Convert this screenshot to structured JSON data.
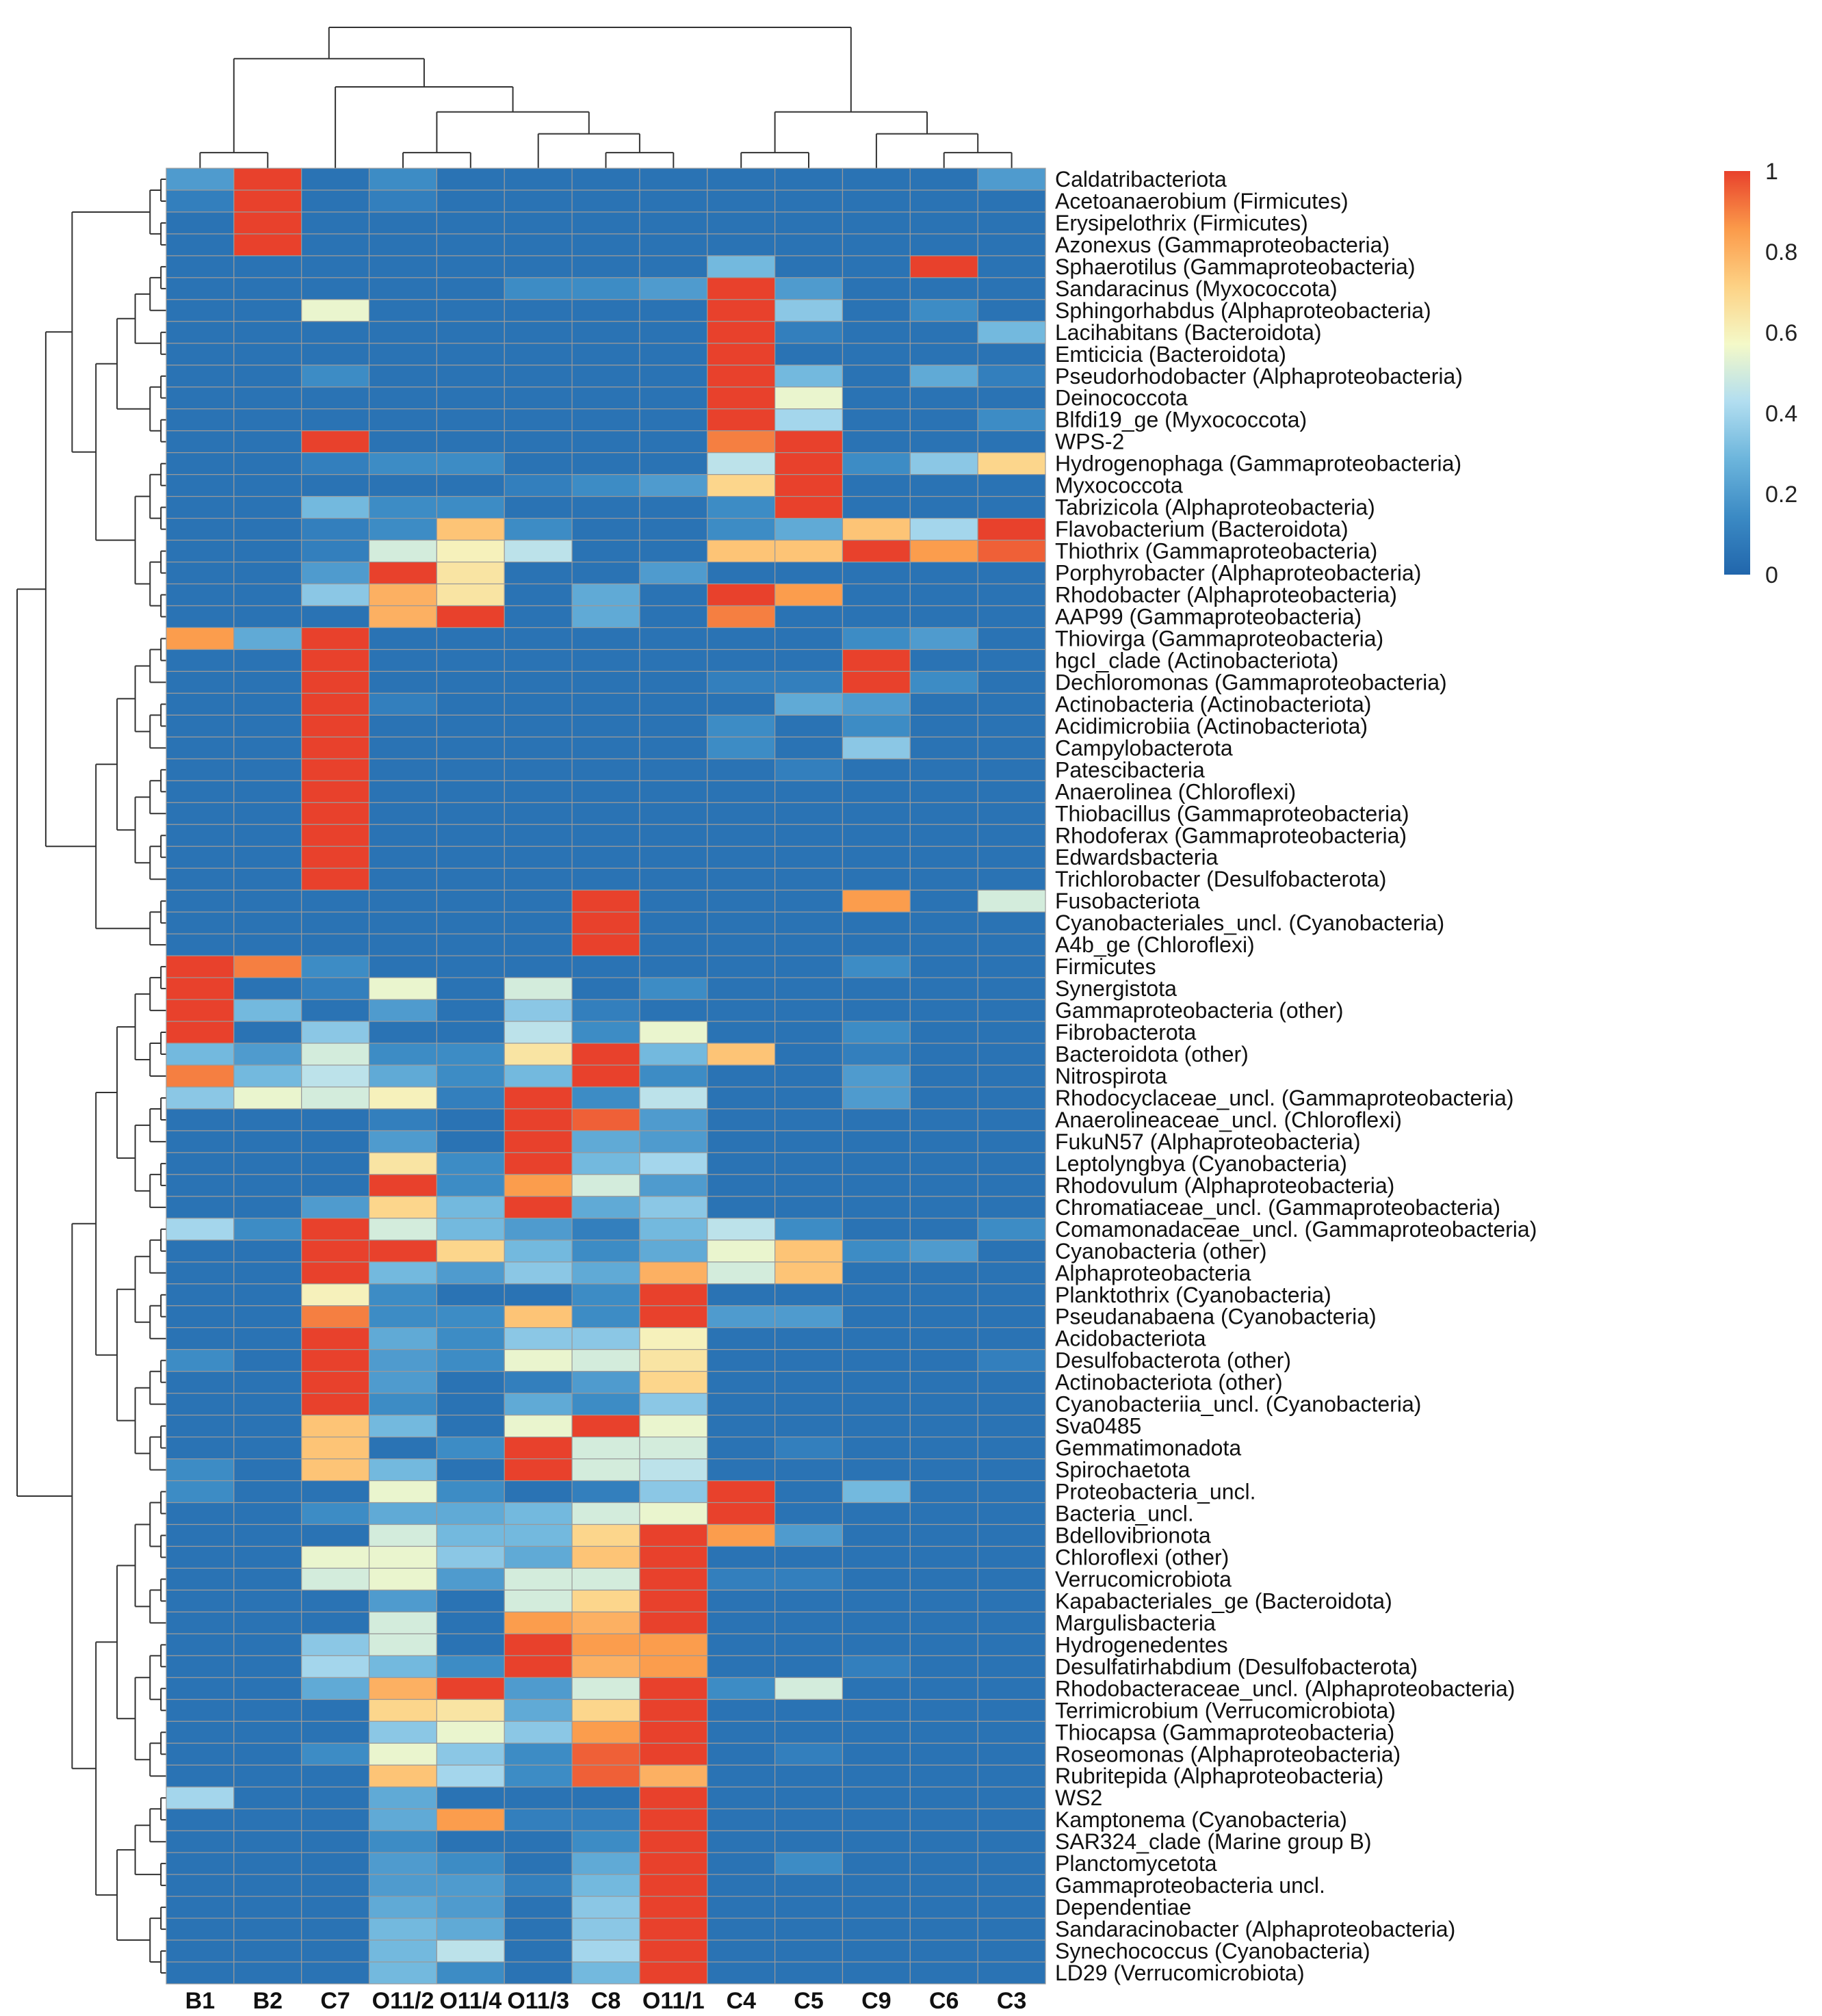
{
  "chart_data": {
    "type": "heatmap",
    "title": "",
    "columns": [
      "B1",
      "B2",
      "C7",
      "O11/2",
      "O11/4",
      "O11/3",
      "C8",
      "O11/1",
      "C4",
      "C5",
      "C9",
      "C6",
      "C3"
    ],
    "rows": [
      "Caldatribacteriota",
      "Acetoanaerobium (Firmicutes)",
      "Erysipelothrix (Firmicutes)",
      "Azonexus (Gammaproteobacteria)",
      "Sphaerotilus (Gammaproteobacteria)",
      "Sandaracinus (Myxococcota)",
      "Sphingorhabdus (Alphaproteobacteria)",
      "Lacihabitans (Bacteroidota)",
      "Emticicia (Bacteroidota)",
      "Pseudorhodobacter (Alphaproteobacteria)",
      "Deinococcota",
      "Blfdi19_ge (Myxococcota)",
      "WPS-2",
      "Hydrogenophaga (Gammaproteobacteria)",
      "Myxococcota",
      "Tabrizicola (Alphaproteobacteria)",
      "Flavobacterium (Bacteroidota)",
      "Thiothrix (Gammaproteobacteria)",
      "Porphyrobacter (Alphaproteobacteria)",
      "Rhodobacter (Alphaproteobacteria)",
      "AAP99 (Gammaproteobacteria)",
      "Thiovirga (Gammaproteobacteria)",
      "hgcI_clade (Actinobacteriota)",
      "Dechloromonas (Gammaproteobacteria)",
      "Actinobacteria (Actinobacteriota)",
      "Acidimicrobiia (Actinobacteriota)",
      "Campylobacterota",
      "Patescibacteria",
      "Anaerolinea (Chloroflexi)",
      "Thiobacillus (Gammaproteobacteria)",
      "Rhodoferax (Gammaproteobacteria)",
      "Edwardsbacteria",
      "Trichlorobacter (Desulfobacterota)",
      "Fusobacteriota",
      "Cyanobacteriales_uncl. (Cyanobacteria)",
      "A4b_ge (Chloroflexi)",
      "Firmicutes",
      "Synergistota",
      "Gammaproteobacteria (other)",
      "Fibrobacterota",
      "Bacteroidota (other)",
      "Nitrospirota",
      "Rhodocyclaceae_uncl. (Gammaproteobacteria)",
      "Anaerolineaceae_uncl. (Chloroflexi)",
      "FukuN57 (Alphaproteobacteria)",
      "Leptolyngbya (Cyanobacteria)",
      "Rhodovulum (Alphaproteobacteria)",
      "Chromatiaceae_uncl. (Gammaproteobacteria)",
      "Comamonadaceae_uncl. (Gammaproteobacteria)",
      "Cyanobacteria (other)",
      "Alphaproteobacteria",
      "Planktothrix (Cyanobacteria)",
      "Pseudanabaena (Cyanobacteria)",
      "Acidobacteriota",
      "Desulfobacterota (other)",
      "Actinobacteriota (other)",
      "Cyanobacteriia_uncl. (Cyanobacteria)",
      "Sva0485",
      "Gemmatimonadota",
      "Spirochaetota",
      "Proteobacteria_uncl.",
      "Bacteria_uncl.",
      "Bdellovibrionota",
      "Chloroflexi (other)",
      "Verrucomicrobiota",
      "Kapabacteriales_ge (Bacteroidota)",
      "Margulisbacteria",
      "Hydrogenedentes",
      "Desulfatirhabdium (Desulfobacterota)",
      "Rhodobacteraceae_uncl. (Alphaproteobacteria)",
      "Terrimicrobium (Verrucomicrobiota)",
      "Thiocapsa (Gammaproteobacteria)",
      "Roseomonas (Alphaproteobacteria)",
      "Rubritepida (Alphaproteobacteria)",
      "WS2",
      "Kamptonema (Cyanobacteria)",
      "SAR324_clade (Marine group B)",
      "Planctomycetota",
      "Gammaproteobacteria uncl.",
      "Dependentiae",
      "Sandaracinobacter (Alphaproteobacteria)",
      "Synechococcus (Cyanobacteria)",
      "LD29 (Verrucomicrobiota)"
    ],
    "values": [
      [
        0.2,
        1,
        0.05,
        0.15,
        0.05,
        0.05,
        0.05,
        0.05,
        0.05,
        0.05,
        0.05,
        0.05,
        0.2
      ],
      [
        0.1,
        1,
        0.05,
        0.1,
        0.05,
        0.05,
        0.05,
        0.05,
        0.05,
        0.05,
        0.05,
        0.05,
        0.05
      ],
      [
        0.05,
        1,
        0.05,
        0.05,
        0.05,
        0.05,
        0.05,
        0.05,
        0.05,
        0.05,
        0.05,
        0.05,
        0.05
      ],
      [
        0.05,
        1,
        0.05,
        0.05,
        0.05,
        0.05,
        0.05,
        0.05,
        0.05,
        0.05,
        0.05,
        0.05,
        0.05
      ],
      [
        0.05,
        0.05,
        0.05,
        0.05,
        0.05,
        0.05,
        0.05,
        0.05,
        0.3,
        0.05,
        0.05,
        1,
        0.05
      ],
      [
        0.05,
        0.05,
        0.05,
        0.05,
        0.05,
        0.15,
        0.15,
        0.2,
        1,
        0.2,
        0.05,
        0.05,
        0.05
      ],
      [
        0.05,
        0.05,
        0.55,
        0.05,
        0.05,
        0.05,
        0.05,
        0.05,
        1,
        0.35,
        0.05,
        0.15,
        0.05
      ],
      [
        0.05,
        0.05,
        0.05,
        0.05,
        0.05,
        0.05,
        0.05,
        0.05,
        1,
        0.1,
        0.05,
        0.05,
        0.3
      ],
      [
        0.05,
        0.05,
        0.05,
        0.05,
        0.05,
        0.05,
        0.05,
        0.05,
        1,
        0.05,
        0.05,
        0.05,
        0.05
      ],
      [
        0.05,
        0.05,
        0.15,
        0.05,
        0.05,
        0.05,
        0.05,
        0.05,
        1,
        0.3,
        0.05,
        0.25,
        0.1
      ],
      [
        0.05,
        0.05,
        0.05,
        0.05,
        0.05,
        0.05,
        0.05,
        0.05,
        1,
        0.55,
        0.05,
        0.05,
        0.05
      ],
      [
        0.05,
        0.05,
        0.05,
        0.05,
        0.05,
        0.05,
        0.05,
        0.05,
        1,
        0.4,
        0.05,
        0.05,
        0.15
      ],
      [
        0.05,
        0.05,
        1,
        0.05,
        0.05,
        0.05,
        0.05,
        0.05,
        0.9,
        1,
        0.05,
        0.05,
        0.05
      ],
      [
        0.05,
        0.05,
        0.1,
        0.15,
        0.15,
        0.05,
        0.05,
        0.05,
        0.45,
        1,
        0.15,
        0.35,
        0.7
      ],
      [
        0.05,
        0.05,
        0.05,
        0.05,
        0.05,
        0.1,
        0.15,
        0.2,
        0.7,
        1,
        0.05,
        0.05,
        0.05
      ],
      [
        0.05,
        0.05,
        0.3,
        0.15,
        0.15,
        0.05,
        0.05,
        0.05,
        0.15,
        1,
        0.05,
        0.05,
        0.05
      ],
      [
        0.05,
        0.05,
        0.1,
        0.15,
        0.75,
        0.15,
        0.05,
        0.05,
        0.15,
        0.25,
        0.75,
        0.4,
        1
      ],
      [
        0.05,
        0.05,
        0.1,
        0.5,
        0.6,
        0.45,
        0.05,
        0.05,
        0.75,
        0.75,
        1,
        0.85,
        0.95
      ],
      [
        0.05,
        0.05,
        0.2,
        1,
        0.65,
        0.05,
        0.05,
        0.2,
        0.05,
        0.05,
        0.05,
        0.05,
        0.05
      ],
      [
        0.05,
        0.05,
        0.35,
        0.8,
        0.65,
        0.05,
        0.25,
        0.05,
        1,
        0.85,
        0.05,
        0.05,
        0.05
      ],
      [
        0.05,
        0.05,
        0.05,
        0.8,
        1,
        0.05,
        0.25,
        0.05,
        0.9,
        0.05,
        0.05,
        0.05,
        0.05
      ],
      [
        0.85,
        0.25,
        1,
        0.05,
        0.05,
        0.05,
        0.05,
        0.05,
        0.05,
        0.05,
        0.15,
        0.2,
        0.05
      ],
      [
        0.05,
        0.05,
        1,
        0.05,
        0.05,
        0.05,
        0.05,
        0.05,
        0.05,
        0.05,
        1,
        0.05,
        0.05
      ],
      [
        0.05,
        0.05,
        1,
        0.05,
        0.05,
        0.05,
        0.05,
        0.05,
        0.1,
        0.1,
        1,
        0.15,
        0.05
      ],
      [
        0.05,
        0.05,
        1,
        0.1,
        0.05,
        0.05,
        0.05,
        0.05,
        0.05,
        0.25,
        0.2,
        0.05,
        0.05
      ],
      [
        0.05,
        0.05,
        1,
        0.05,
        0.05,
        0.05,
        0.05,
        0.05,
        0.15,
        0.05,
        0.15,
        0.05,
        0.05
      ],
      [
        0.05,
        0.05,
        1,
        0.05,
        0.05,
        0.05,
        0.05,
        0.05,
        0.15,
        0.05,
        0.35,
        0.05,
        0.05
      ],
      [
        0.05,
        0.05,
        1,
        0.05,
        0.05,
        0.05,
        0.05,
        0.05,
        0.05,
        0.1,
        0.05,
        0.05,
        0.05
      ],
      [
        0.05,
        0.05,
        1,
        0.05,
        0.05,
        0.05,
        0.05,
        0.05,
        0.05,
        0.05,
        0.05,
        0.05,
        0.05
      ],
      [
        0.05,
        0.05,
        1,
        0.05,
        0.05,
        0.05,
        0.05,
        0.05,
        0.05,
        0.05,
        0.05,
        0.05,
        0.05
      ],
      [
        0.05,
        0.05,
        1,
        0.05,
        0.05,
        0.05,
        0.05,
        0.05,
        0.05,
        0.05,
        0.05,
        0.05,
        0.05
      ],
      [
        0.05,
        0.05,
        1,
        0.05,
        0.05,
        0.05,
        0.05,
        0.05,
        0.05,
        0.05,
        0.05,
        0.05,
        0.05
      ],
      [
        0.05,
        0.05,
        1,
        0.05,
        0.05,
        0.05,
        0.05,
        0.05,
        0.05,
        0.05,
        0.05,
        0.05,
        0.05
      ],
      [
        0.05,
        0.05,
        0.05,
        0.05,
        0.05,
        0.05,
        1,
        0.05,
        0.05,
        0.05,
        0.85,
        0.05,
        0.5
      ],
      [
        0.05,
        0.05,
        0.05,
        0.05,
        0.05,
        0.05,
        1,
        0.05,
        0.05,
        0.05,
        0.05,
        0.05,
        0.05
      ],
      [
        0.05,
        0.05,
        0.05,
        0.05,
        0.05,
        0.05,
        1,
        0.05,
        0.05,
        0.05,
        0.05,
        0.05,
        0.05
      ],
      [
        1,
        0.9,
        0.15,
        0.05,
        0.05,
        0.05,
        0.05,
        0.05,
        0.05,
        0.05,
        0.15,
        0.05,
        0.05
      ],
      [
        1,
        0.05,
        0.1,
        0.55,
        0.05,
        0.5,
        0.05,
        0.15,
        0.05,
        0.05,
        0.05,
        0.05,
        0.05
      ],
      [
        1,
        0.3,
        0.05,
        0.2,
        0.05,
        0.35,
        0.1,
        0.05,
        0.05,
        0.05,
        0.05,
        0.05,
        0.05
      ],
      [
        1,
        0.05,
        0.35,
        0.05,
        0.05,
        0.45,
        0.15,
        0.55,
        0.05,
        0.05,
        0.15,
        0.05,
        0.05
      ],
      [
        0.3,
        0.2,
        0.5,
        0.15,
        0.15,
        0.65,
        1,
        0.3,
        0.75,
        0.05,
        0.1,
        0.05,
        0.05
      ],
      [
        0.9,
        0.3,
        0.45,
        0.25,
        0.15,
        0.3,
        1,
        0.15,
        0.05,
        0.05,
        0.2,
        0.05,
        0.05
      ],
      [
        0.35,
        0.55,
        0.5,
        0.6,
        0.1,
        1,
        0.15,
        0.45,
        0.05,
        0.05,
        0.2,
        0.05,
        0.05
      ],
      [
        0.05,
        0.05,
        0.05,
        0.1,
        0.05,
        1,
        0.95,
        0.2,
        0.05,
        0.05,
        0.05,
        0.05,
        0.05
      ],
      [
        0.05,
        0.05,
        0.05,
        0.2,
        0.05,
        1,
        0.25,
        0.2,
        0.05,
        0.05,
        0.05,
        0.05,
        0.05
      ],
      [
        0.05,
        0.05,
        0.05,
        0.65,
        0.15,
        1,
        0.3,
        0.4,
        0.05,
        0.05,
        0.05,
        0.05,
        0.05
      ],
      [
        0.05,
        0.05,
        0.05,
        1,
        0.15,
        0.85,
        0.5,
        0.2,
        0.05,
        0.05,
        0.05,
        0.05,
        0.05
      ],
      [
        0.05,
        0.05,
        0.2,
        0.7,
        0.3,
        1,
        0.25,
        0.35,
        0.05,
        0.05,
        0.05,
        0.05,
        0.05
      ],
      [
        0.4,
        0.15,
        1,
        0.5,
        0.3,
        0.2,
        0.1,
        0.3,
        0.45,
        0.15,
        0.05,
        0.05,
        0.15
      ],
      [
        0.05,
        0.05,
        1,
        1,
        0.7,
        0.3,
        0.15,
        0.25,
        0.55,
        0.75,
        0.15,
        0.2,
        0.05
      ],
      [
        0.05,
        0.05,
        1,
        0.3,
        0.2,
        0.35,
        0.25,
        0.8,
        0.5,
        0.75,
        0.05,
        0.05,
        0.05
      ],
      [
        0.05,
        0.05,
        0.6,
        0.15,
        0.05,
        0.05,
        0.15,
        1,
        0.05,
        0.05,
        0.05,
        0.05,
        0.05
      ],
      [
        0.05,
        0.05,
        0.9,
        0.15,
        0.15,
        0.75,
        0.15,
        1,
        0.2,
        0.2,
        0.05,
        0.05,
        0.05
      ],
      [
        0.05,
        0.05,
        1,
        0.25,
        0.15,
        0.35,
        0.35,
        0.6,
        0.05,
        0.05,
        0.05,
        0.05,
        0.05
      ],
      [
        0.15,
        0.05,
        1,
        0.2,
        0.15,
        0.55,
        0.5,
        0.65,
        0.05,
        0.05,
        0.05,
        0.05,
        0.1
      ],
      [
        0.05,
        0.05,
        1,
        0.2,
        0.05,
        0.1,
        0.2,
        0.7,
        0.05,
        0.05,
        0.05,
        0.05,
        0.05
      ],
      [
        0.05,
        0.05,
        1,
        0.15,
        0.05,
        0.25,
        0.15,
        0.35,
        0.05,
        0.05,
        0.05,
        0.05,
        0.05
      ],
      [
        0.05,
        0.05,
        0.75,
        0.3,
        0.05,
        0.55,
        1,
        0.55,
        0.05,
        0.05,
        0.05,
        0.05,
        0.05
      ],
      [
        0.05,
        0.05,
        0.75,
        0.05,
        0.15,
        1,
        0.5,
        0.5,
        0.05,
        0.1,
        0.05,
        0.05,
        0.05
      ],
      [
        0.15,
        0.05,
        0.75,
        0.3,
        0.05,
        1,
        0.5,
        0.45,
        0.05,
        0.05,
        0.05,
        0.05,
        0.05
      ],
      [
        0.15,
        0.05,
        0.05,
        0.55,
        0.15,
        0.05,
        0.1,
        0.35,
        1,
        0.05,
        0.3,
        0.05,
        0.05
      ],
      [
        0.05,
        0.05,
        0.15,
        0.25,
        0.25,
        0.3,
        0.5,
        0.55,
        1,
        0.05,
        0.05,
        0.05,
        0.05
      ],
      [
        0.05,
        0.05,
        0.05,
        0.5,
        0.3,
        0.3,
        0.7,
        1,
        0.85,
        0.2,
        0.05,
        0.05,
        0.05
      ],
      [
        0.05,
        0.05,
        0.55,
        0.55,
        0.35,
        0.25,
        0.75,
        1,
        0.05,
        0.05,
        0.05,
        0.05,
        0.05
      ],
      [
        0.05,
        0.05,
        0.5,
        0.55,
        0.2,
        0.5,
        0.5,
        1,
        0.1,
        0.1,
        0.05,
        0.05,
        0.05
      ],
      [
        0.05,
        0.05,
        0.05,
        0.2,
        0.05,
        0.5,
        0.7,
        1,
        0.05,
        0.05,
        0.05,
        0.05,
        0.05
      ],
      [
        0.05,
        0.05,
        0.05,
        0.5,
        0.05,
        0.85,
        0.8,
        1,
        0.05,
        0.05,
        0.05,
        0.05,
        0.05
      ],
      [
        0.05,
        0.05,
        0.35,
        0.5,
        0.05,
        1,
        0.85,
        0.85,
        0.05,
        0.05,
        0.05,
        0.05,
        0.05
      ],
      [
        0.05,
        0.05,
        0.4,
        0.3,
        0.15,
        1,
        0.8,
        0.85,
        0.05,
        0.05,
        0.1,
        0.05,
        0.05
      ],
      [
        0.05,
        0.05,
        0.25,
        0.8,
        1,
        0.2,
        0.5,
        1,
        0.15,
        0.5,
        0.05,
        0.05,
        0.05
      ],
      [
        0.05,
        0.05,
        0.05,
        0.7,
        0.65,
        0.25,
        0.7,
        1,
        0.05,
        0.05,
        0.05,
        0.05,
        0.05
      ],
      [
        0.05,
        0.05,
        0.05,
        0.35,
        0.55,
        0.35,
        0.85,
        1,
        0.05,
        0.05,
        0.05,
        0.05,
        0.05
      ],
      [
        0.05,
        0.05,
        0.15,
        0.55,
        0.35,
        0.15,
        0.95,
        1,
        0.05,
        0.1,
        0.05,
        0.05,
        0.05
      ],
      [
        0.05,
        0.05,
        0.05,
        0.75,
        0.4,
        0.15,
        0.95,
        0.8,
        0.05,
        0.05,
        0.05,
        0.05,
        0.05
      ],
      [
        0.4,
        0.05,
        0.05,
        0.25,
        0.05,
        0.05,
        0.05,
        1,
        0.05,
        0.05,
        0.05,
        0.05,
        0.05
      ],
      [
        0.05,
        0.05,
        0.05,
        0.25,
        0.85,
        0.1,
        0.1,
        1,
        0.05,
        0.05,
        0.05,
        0.05,
        0.05
      ],
      [
        0.05,
        0.05,
        0.05,
        0.15,
        0.05,
        0.05,
        0.15,
        1,
        0.05,
        0.05,
        0.05,
        0.05,
        0.05
      ],
      [
        0.05,
        0.05,
        0.05,
        0.2,
        0.15,
        0.05,
        0.25,
        1,
        0.05,
        0.15,
        0.05,
        0.05,
        0.05
      ],
      [
        0.05,
        0.05,
        0.05,
        0.2,
        0.2,
        0.1,
        0.3,
        1,
        0.05,
        0.05,
        0.05,
        0.05,
        0.05
      ],
      [
        0.05,
        0.05,
        0.05,
        0.25,
        0.2,
        0.05,
        0.35,
        1,
        0.05,
        0.05,
        0.05,
        0.05,
        0.05
      ],
      [
        0.05,
        0.05,
        0.05,
        0.3,
        0.25,
        0.05,
        0.35,
        1,
        0.05,
        0.05,
        0.05,
        0.05,
        0.05
      ],
      [
        0.05,
        0.05,
        0.05,
        0.3,
        0.45,
        0.05,
        0.4,
        1,
        0.05,
        0.05,
        0.05,
        0.05,
        0.05
      ],
      [
        0.05,
        0.05,
        0.05,
        0.3,
        0.15,
        0.05,
        0.3,
        1,
        0.05,
        0.05,
        0.05,
        0.05,
        0.05
      ]
    ],
    "color_scale": {
      "min": 0,
      "max": 1,
      "ticks": [
        "0",
        "0.2",
        "0.4",
        "0.6",
        "0.8",
        "1"
      ],
      "colors": [
        "#2166ac",
        "#3b8ac4",
        "#6cb5dc",
        "#b2def0",
        "#f4f9c8",
        "#fdd285",
        "#fb9a4a",
        "#e8412c"
      ]
    },
    "grid": true,
    "legend": "top-right"
  }
}
